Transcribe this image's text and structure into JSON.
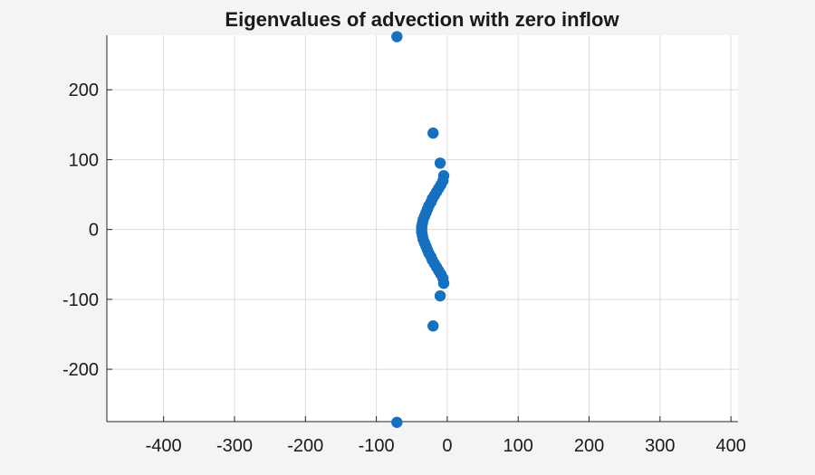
{
  "chart_data": {
    "type": "scatter",
    "title": "Eigenvalues of advection with zero inflow",
    "xlabel": "",
    "ylabel": "",
    "xlim": [
      -480,
      410
    ],
    "ylim": [
      -275,
      278
    ],
    "xticks": [
      -400,
      -300,
      -200,
      -100,
      0,
      100,
      200,
      300,
      400
    ],
    "yticks": [
      -200,
      -100,
      0,
      100,
      200
    ],
    "grid": true,
    "marker_color": "#1670c0",
    "background": "#ffffff",
    "figure_background": "#f4f4f4",
    "series": [
      {
        "points": [
          [
            -71,
            276
          ],
          [
            -71,
            -276
          ],
          [
            -20,
            138
          ],
          [
            -20,
            -138
          ],
          [
            -10,
            95
          ],
          [
            -10,
            -95
          ],
          [
            -5,
            77
          ],
          [
            -5,
            -77
          ],
          [
            -6,
            70
          ],
          [
            -6,
            -70
          ],
          [
            -9,
            64
          ],
          [
            -9,
            -64
          ],
          [
            -12,
            59
          ],
          [
            -12,
            -59
          ],
          [
            -15,
            54
          ],
          [
            -15,
            -54
          ],
          [
            -18,
            49
          ],
          [
            -18,
            -49
          ],
          [
            -21,
            44
          ],
          [
            -21,
            -44
          ],
          [
            -23,
            39
          ],
          [
            -23,
            -39
          ],
          [
            -26,
            34
          ],
          [
            -26,
            -34
          ],
          [
            -28,
            29
          ],
          [
            -28,
            -29
          ],
          [
            -30,
            24
          ],
          [
            -30,
            -24
          ],
          [
            -32,
            19
          ],
          [
            -32,
            -19
          ],
          [
            -34,
            14
          ],
          [
            -34,
            -14
          ],
          [
            -35,
            9
          ],
          [
            -35,
            -9
          ],
          [
            -36,
            4
          ],
          [
            -36,
            -4
          ],
          [
            -36,
            0
          ]
        ]
      }
    ]
  }
}
